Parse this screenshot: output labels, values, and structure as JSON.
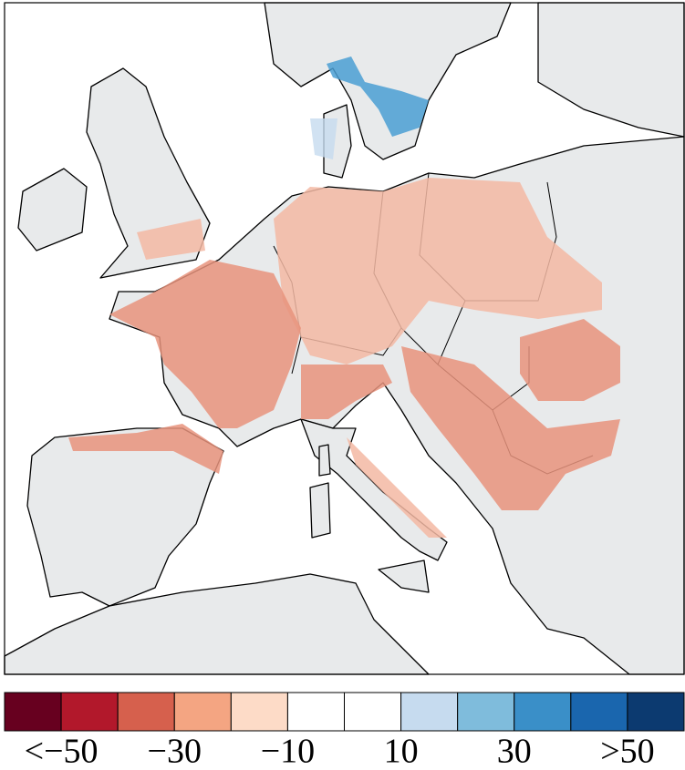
{
  "colorbar": {
    "colors": [
      "#67001f",
      "#b2182b",
      "#d6604d",
      "#f4a582",
      "#fddbc7",
      "#ffffff",
      "#ffffff",
      "#c6dbef",
      "#7fbcdc",
      "#3a8fc8",
      "#1a66ae",
      "#0c3a70"
    ],
    "ticks": [
      {
        "value": -50,
        "label": "<−50"
      },
      {
        "value": -30,
        "label": "−30"
      },
      {
        "value": -10,
        "label": "−10"
      },
      10,
      30,
      {
        "value": 50,
        "label": ">50"
      }
    ]
  }
}
